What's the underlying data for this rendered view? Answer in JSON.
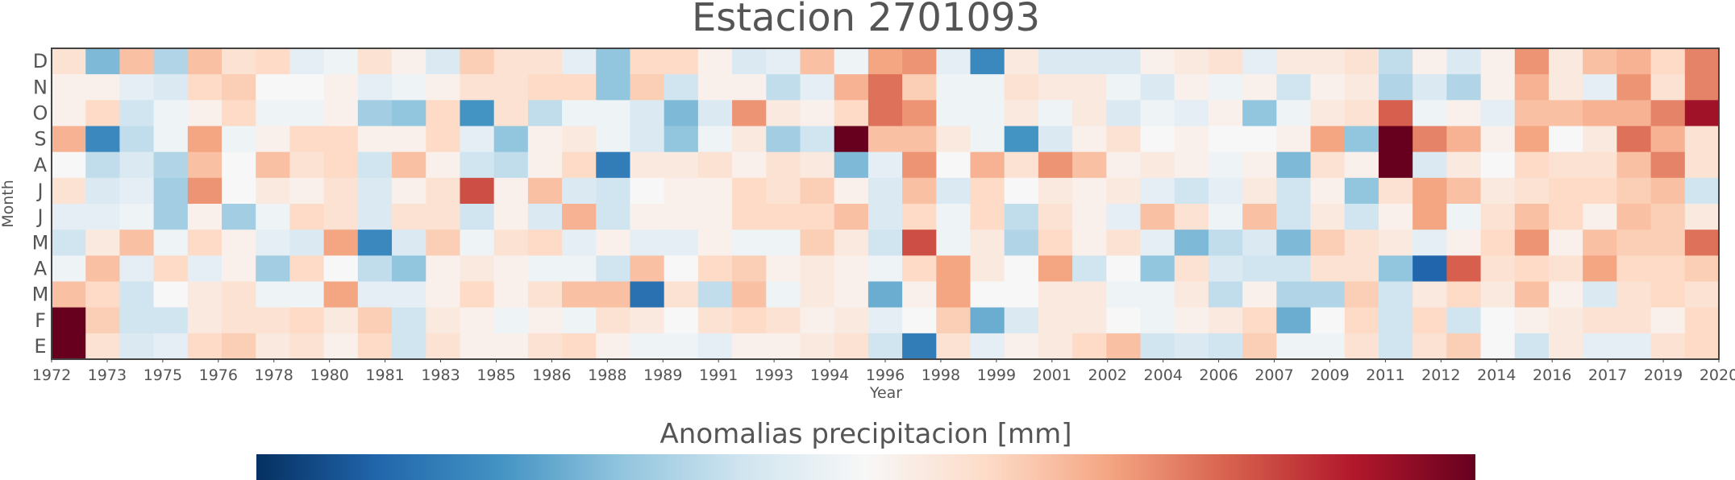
{
  "chart_data": {
    "type": "heatmap",
    "title": "Estacion 2701093",
    "xlabel": "Year",
    "ylabel": "Month",
    "x_tick_labels": [
      "1972",
      "1973",
      "1975",
      "1976",
      "1978",
      "1980",
      "1981",
      "1983",
      "1985",
      "1986",
      "1988",
      "1989",
      "1991",
      "1993",
      "1994",
      "1996",
      "1998",
      "1999",
      "2001",
      "2002",
      "2004",
      "2006",
      "2007",
      "2009",
      "2011",
      "2012",
      "2014",
      "2016",
      "2017",
      "2019",
      "2020"
    ],
    "y_tick_labels": [
      "D",
      "N",
      "O",
      "S",
      "A",
      "J",
      "J",
      "M",
      "A",
      "M",
      "F",
      "E"
    ],
    "years": [
      1972,
      1973,
      1974,
      1975,
      1976,
      1977,
      1978,
      1979,
      1980,
      1981,
      1982,
      1983,
      1984,
      1985,
      1986,
      1987,
      1988,
      1989,
      1990,
      1991,
      1992,
      1993,
      1994,
      1995,
      1996,
      1997,
      1998,
      1999,
      2000,
      2001,
      2002,
      2003,
      2004,
      2005,
      2006,
      2007,
      2008,
      2009,
      2010,
      2011,
      2012,
      2013,
      2014,
      2015,
      2016,
      2017,
      2018,
      2019,
      2020
    ],
    "rows_top_to_bottom": [
      "D",
      "N",
      "O",
      "S",
      "A",
      "J",
      "J",
      "M",
      "A",
      "M",
      "F",
      "E"
    ],
    "values": [
      [
        0.15,
        -0.45,
        0.3,
        -0.3,
        0.3,
        0.15,
        0.2,
        -0.1,
        -0.05,
        0.15,
        0.05,
        -0.15,
        0.25,
        0.15,
        0.15,
        -0.1,
        -0.4,
        0.2,
        0.2,
        0.05,
        -0.15,
        -0.1,
        0.3,
        -0.05,
        0.4,
        0.45,
        -0.1,
        -0.65,
        0.1,
        -0.15,
        -0.15,
        -0.15,
        0.05,
        0.1,
        0.15,
        -0.1,
        0.1,
        0.1,
        0.15,
        -0.25,
        0.05,
        -0.15,
        0.05,
        0.45,
        0.1,
        0.3,
        0.35,
        0.2,
        0.5
      ],
      [
        0.05,
        0.05,
        -0.1,
        -0.15,
        0.2,
        0.25,
        0.0,
        0.0,
        0.05,
        -0.1,
        -0.05,
        0.05,
        0.15,
        0.15,
        0.2,
        0.2,
        -0.4,
        0.25,
        -0.2,
        0.05,
        0.05,
        -0.25,
        -0.1,
        0.35,
        0.55,
        0.25,
        -0.05,
        -0.05,
        0.15,
        0.1,
        0.1,
        -0.05,
        -0.15,
        0.05,
        -0.05,
        0.05,
        -0.2,
        0.05,
        0.1,
        -0.3,
        -0.15,
        -0.3,
        0.05,
        0.35,
        0.1,
        -0.1,
        0.45,
        0.15,
        0.5
      ],
      [
        0.05,
        0.2,
        -0.2,
        -0.05,
        0.05,
        0.2,
        -0.05,
        -0.05,
        0.05,
        -0.35,
        -0.4,
        0.2,
        -0.6,
        0.15,
        -0.25,
        -0.05,
        -0.05,
        -0.15,
        -0.45,
        -0.15,
        0.45,
        0.1,
        0.05,
        0.2,
        0.55,
        0.45,
        -0.05,
        -0.05,
        0.1,
        -0.05,
        0.1,
        -0.15,
        -0.05,
        -0.1,
        0.05,
        -0.4,
        -0.05,
        0.1,
        0.15,
        0.6,
        -0.05,
        0.05,
        -0.1,
        0.3,
        0.3,
        0.35,
        0.35,
        0.5,
        0.85
      ],
      [
        0.35,
        -0.65,
        -0.25,
        -0.05,
        0.4,
        -0.05,
        0.05,
        0.2,
        0.2,
        0.05,
        0.05,
        0.2,
        -0.1,
        -0.4,
        0.05,
        0.1,
        -0.05,
        -0.15,
        -0.4,
        -0.05,
        0.1,
        -0.35,
        -0.2,
        1.0,
        0.3,
        0.3,
        0.1,
        -0.05,
        -0.6,
        -0.15,
        0.05,
        0.15,
        0.0,
        0.05,
        0.0,
        0.0,
        0.05,
        0.4,
        -0.4,
        1.0,
        0.5,
        0.35,
        0.05,
        0.4,
        0.0,
        0.1,
        0.55,
        0.35,
        0.15
      ],
      [
        0.0,
        -0.25,
        -0.15,
        -0.3,
        0.3,
        0.0,
        0.3,
        0.15,
        0.2,
        -0.2,
        0.3,
        0.05,
        -0.2,
        -0.25,
        0.05,
        0.2,
        -0.7,
        0.1,
        0.1,
        0.15,
        0.05,
        0.15,
        0.1,
        -0.45,
        -0.1,
        0.45,
        0.0,
        0.35,
        0.15,
        0.45,
        0.3,
        0.05,
        0.1,
        0.05,
        -0.05,
        0.05,
        -0.45,
        0.15,
        0.05,
        1.0,
        -0.15,
        0.1,
        0.0,
        0.2,
        0.15,
        0.15,
        0.3,
        0.5,
        0.15
      ],
      [
        0.15,
        -0.15,
        -0.1,
        -0.35,
        0.45,
        0.0,
        0.1,
        0.05,
        0.15,
        -0.15,
        0.05,
        0.15,
        0.65,
        0.05,
        0.3,
        -0.15,
        -0.2,
        0.0,
        0.05,
        0.05,
        0.2,
        0.15,
        0.25,
        0.05,
        -0.15,
        0.3,
        -0.15,
        0.2,
        0.0,
        0.1,
        0.05,
        0.1,
        -0.1,
        -0.2,
        -0.1,
        0.1,
        -0.2,
        0.05,
        -0.4,
        0.15,
        0.4,
        0.3,
        0.1,
        0.15,
        0.2,
        0.2,
        0.25,
        0.3,
        -0.2
      ],
      [
        -0.1,
        -0.1,
        -0.05,
        -0.35,
        0.05,
        -0.35,
        -0.05,
        0.2,
        0.15,
        -0.15,
        0.15,
        0.15,
        -0.2,
        0.05,
        -0.15,
        0.35,
        -0.2,
        0.05,
        0.05,
        0.05,
        0.2,
        0.2,
        0.2,
        0.3,
        -0.15,
        0.2,
        -0.05,
        0.2,
        -0.25,
        0.15,
        0.05,
        -0.1,
        0.3,
        0.15,
        -0.05,
        0.3,
        -0.2,
        0.1,
        -0.2,
        0.05,
        0.4,
        -0.05,
        0.15,
        0.3,
        0.2,
        0.05,
        0.3,
        0.25,
        0.1
      ],
      [
        -0.2,
        0.1,
        0.3,
        -0.05,
        0.2,
        0.05,
        -0.1,
        -0.15,
        0.4,
        -0.65,
        -0.15,
        0.25,
        -0.05,
        0.15,
        0.2,
        -0.1,
        0.05,
        -0.1,
        -0.1,
        0.05,
        -0.05,
        -0.05,
        0.25,
        0.1,
        -0.2,
        0.65,
        -0.05,
        0.1,
        -0.3,
        0.2,
        0.05,
        0.15,
        -0.1,
        -0.45,
        -0.25,
        -0.15,
        -0.45,
        0.25,
        0.15,
        0.1,
        -0.1,
        0.05,
        0.2,
        0.45,
        0.05,
        0.3,
        0.25,
        0.25,
        0.55
      ],
      [
        -0.05,
        0.3,
        -0.1,
        0.2,
        -0.1,
        0.05,
        -0.35,
        0.2,
        0.0,
        -0.25,
        -0.4,
        0.05,
        0.1,
        0.05,
        -0.05,
        -0.05,
        -0.2,
        0.3,
        0.0,
        0.2,
        0.25,
        0.05,
        0.1,
        0.05,
        -0.05,
        0.2,
        0.4,
        0.1,
        0.0,
        0.4,
        -0.2,
        0.0,
        -0.4,
        0.15,
        -0.15,
        -0.2,
        -0.2,
        0.15,
        0.15,
        -0.4,
        -0.8,
        0.6,
        0.15,
        0.2,
        0.15,
        0.4,
        0.2,
        0.2,
        0.25
      ],
      [
        0.3,
        0.2,
        -0.2,
        0.0,
        0.1,
        0.15,
        -0.05,
        -0.05,
        0.4,
        -0.1,
        -0.1,
        0.05,
        0.2,
        0.05,
        0.15,
        0.3,
        0.3,
        -0.75,
        0.15,
        -0.25,
        0.3,
        -0.05,
        0.1,
        0.05,
        -0.5,
        0.05,
        0.4,
        0.0,
        0.0,
        0.1,
        0.1,
        -0.05,
        -0.05,
        0.1,
        -0.25,
        0.05,
        -0.3,
        -0.3,
        0.25,
        -0.2,
        0.1,
        0.2,
        0.1,
        0.3,
        0.05,
        -0.15,
        0.15,
        0.2,
        0.15
      ],
      [
        1.0,
        0.25,
        -0.2,
        -0.2,
        0.1,
        0.15,
        0.15,
        0.2,
        0.1,
        0.25,
        -0.2,
        0.1,
        0.05,
        -0.05,
        0.05,
        -0.05,
        0.15,
        0.1,
        0.0,
        0.15,
        0.2,
        0.15,
        0.05,
        0.1,
        -0.1,
        0.0,
        0.25,
        -0.5,
        -0.15,
        0.1,
        0.1,
        0.0,
        -0.05,
        0.05,
        0.1,
        0.2,
        -0.5,
        0.0,
        0.2,
        -0.2,
        0.2,
        -0.2,
        0.0,
        0.05,
        0.1,
        0.15,
        0.15,
        0.05,
        0.2
      ],
      [
        1.0,
        0.15,
        -0.15,
        -0.1,
        0.2,
        0.25,
        0.1,
        0.15,
        0.05,
        0.2,
        -0.2,
        0.15,
        0.05,
        0.05,
        0.15,
        0.2,
        0.05,
        -0.05,
        -0.05,
        -0.1,
        0.05,
        0.05,
        0.1,
        0.15,
        -0.2,
        -0.7,
        0.15,
        -0.1,
        0.05,
        0.1,
        0.2,
        0.3,
        -0.2,
        -0.15,
        -0.2,
        0.25,
        -0.05,
        -0.05,
        0.15,
        -0.2,
        0.15,
        0.25,
        0.0,
        -0.2,
        0.1,
        -0.1,
        -0.1,
        0.15,
        0.2
      ]
    ],
    "colorbar_label": "Anomalias precipitacion [mm]",
    "colormap": "RdBu_r",
    "colors": {
      "neg_max": "#053061",
      "zero": "#f7f7f7",
      "pos_max": "#67001f",
      "axis_text": "#555555"
    }
  }
}
